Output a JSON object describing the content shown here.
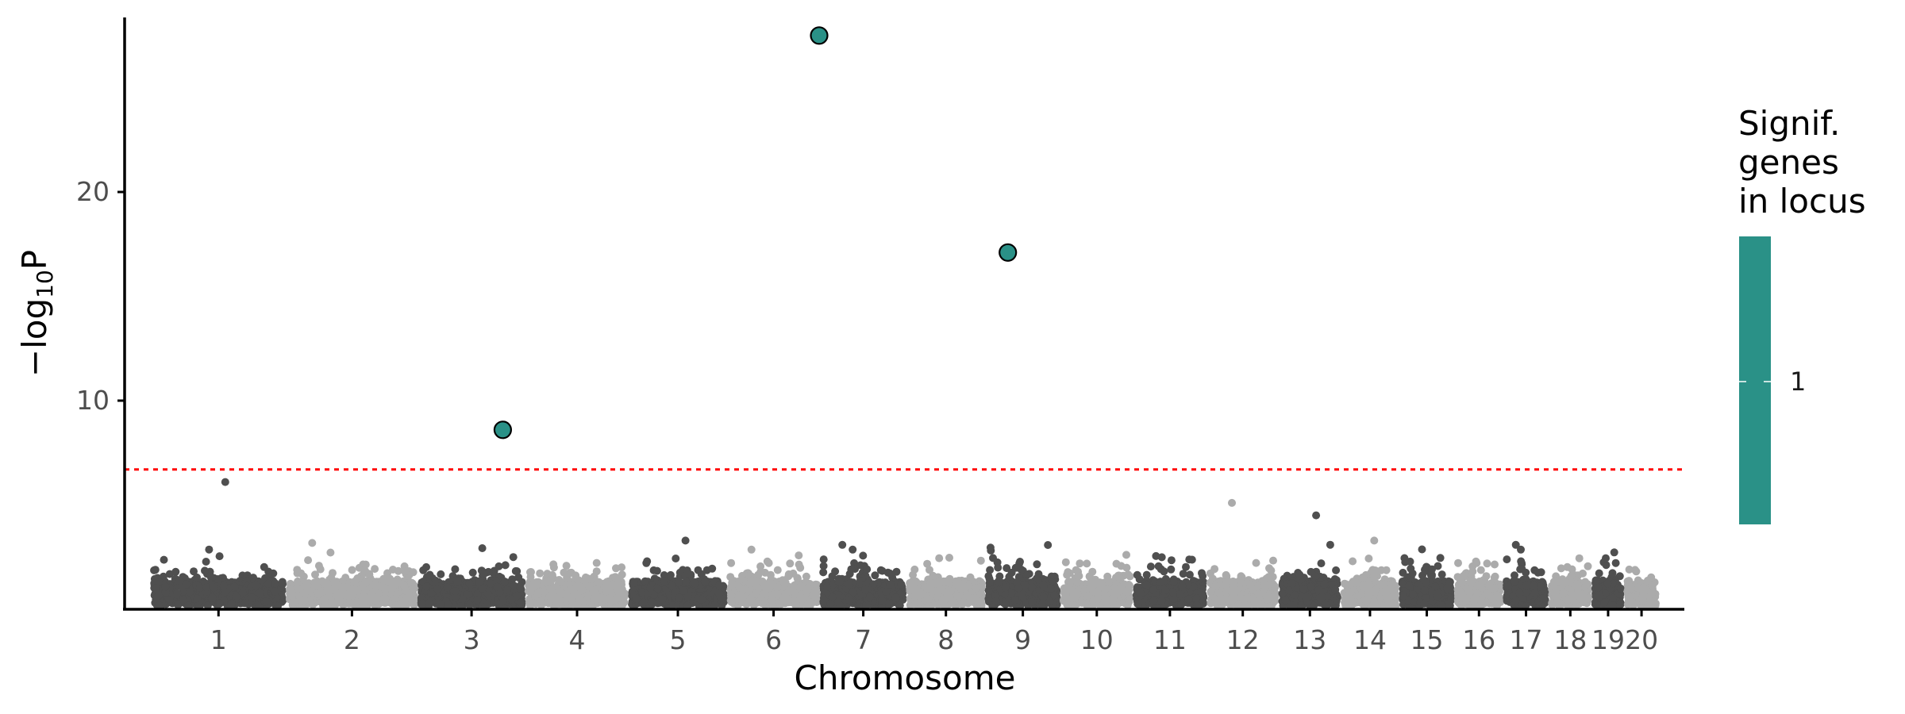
{
  "chart_data": {
    "type": "scatter",
    "xlabel": "Chromosome",
    "ylabel": "−log10P",
    "y_ticks": [
      10,
      20
    ],
    "ylim": [
      0,
      28.5
    ],
    "chromosomes": [
      {
        "label": "1",
        "length": 249,
        "shade": "dark"
      },
      {
        "label": "2",
        "length": 242,
        "shade": "light"
      },
      {
        "label": "3",
        "length": 198,
        "shade": "dark"
      },
      {
        "label": "4",
        "length": 190,
        "shade": "light"
      },
      {
        "label": "5",
        "length": 181,
        "shade": "dark"
      },
      {
        "label": "6",
        "length": 171,
        "shade": "light"
      },
      {
        "label": "7",
        "length": 159,
        "shade": "dark"
      },
      {
        "label": "8",
        "length": 145,
        "shade": "light"
      },
      {
        "label": "9",
        "length": 138,
        "shade": "dark"
      },
      {
        "label": "10",
        "length": 134,
        "shade": "light"
      },
      {
        "label": "11",
        "length": 135,
        "shade": "dark"
      },
      {
        "label": "12",
        "length": 133,
        "shade": "light"
      },
      {
        "label": "13",
        "length": 114,
        "shade": "dark"
      },
      {
        "label": "14",
        "length": 107,
        "shade": "light"
      },
      {
        "label": "15",
        "length": 102,
        "shade": "dark"
      },
      {
        "label": "16",
        "length": 90,
        "shade": "light"
      },
      {
        "label": "17",
        "length": 83,
        "shade": "dark"
      },
      {
        "label": "18",
        "length": 80,
        "shade": "light"
      },
      {
        "label": "19",
        "length": 59,
        "shade": "dark"
      },
      {
        "label": "20",
        "length": 64,
        "shade": "light"
      }
    ],
    "threshold": {
      "y": 6.7,
      "color": "#ff0000",
      "style": "dotted"
    },
    "significant_points": [
      {
        "chromosome": "3",
        "position": 0.79,
        "y": 8.6
      },
      {
        "chromosome": "6",
        "position": 0.99,
        "y": 27.5
      },
      {
        "chromosome": "9",
        "position": 0.3,
        "y": 17.1
      }
    ],
    "background_max_peaks": [
      {
        "chromosome": "1",
        "y": 6.1
      },
      {
        "chromosome": "12",
        "y": 5.1
      },
      {
        "chromosome": "13",
        "y": 4.5
      }
    ],
    "legend": {
      "title": [
        "Signif.",
        "genes",
        "in locus"
      ],
      "label": "1",
      "color": "#2a9187",
      "position": "right"
    },
    "colors": {
      "dark": "#4f4f4f",
      "light": "#ababab",
      "significant": "#2a9187",
      "threshold": "#ff0000"
    }
  }
}
